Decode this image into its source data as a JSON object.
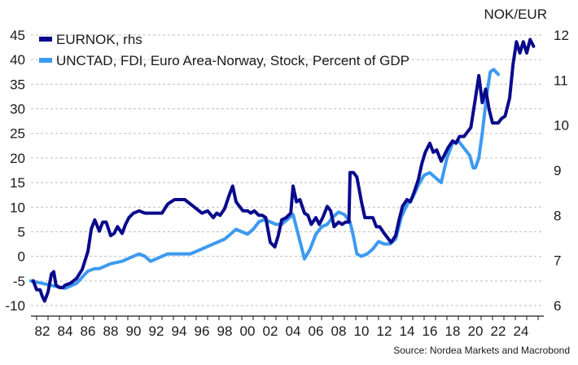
{
  "chart_data": {
    "type": "line",
    "title": "",
    "right_axis_unit": "NOK/EUR",
    "source": "Source: Nordea Markets and Macrobond",
    "ylim_left": [
      -10,
      45
    ],
    "ylim_right": [
      6,
      12
    ],
    "yticks_left": [
      "-10",
      "-5",
      "0",
      "5",
      "10",
      "15",
      "20",
      "25",
      "30",
      "35",
      "40",
      "45"
    ],
    "yticks_right": [
      "6",
      "7",
      "8",
      "9",
      "10",
      "11",
      "12"
    ],
    "xlim": [
      1981,
      2026
    ],
    "xticks": [
      "82",
      "84",
      "86",
      "88",
      "90",
      "92",
      "94",
      "96",
      "98",
      "00",
      "02",
      "04",
      "06",
      "08",
      "10",
      "12",
      "14",
      "16",
      "18",
      "20",
      "22",
      "24"
    ],
    "grid": true,
    "legend_position": "top-left",
    "series": [
      {
        "name": "EURNOK, rhs",
        "axis": "right",
        "color": "#0a0a8c",
        "x": [
          1981.2,
          1981.5,
          1981.8,
          1982.0,
          1982.2,
          1982.5,
          1982.8,
          1983.0,
          1983.2,
          1983.5,
          1983.8,
          1984.0,
          1984.5,
          1985.0,
          1985.5,
          1986.0,
          1986.3,
          1986.6,
          1987.0,
          1987.3,
          1987.6,
          1988.0,
          1988.3,
          1988.6,
          1989.0,
          1989.3,
          1989.6,
          1990.0,
          1990.5,
          1991.0,
          1991.5,
          1992.0,
          1992.5,
          1993.0,
          1993.3,
          1993.6,
          1994.0,
          1994.5,
          1995.0,
          1995.5,
          1996.0,
          1996.5,
          1997.0,
          1997.3,
          1997.6,
          1998.0,
          1998.4,
          1998.7,
          1999.0,
          1999.3,
          1999.6,
          2000.0,
          2000.3,
          2000.6,
          2001.0,
          2001.3,
          2001.6,
          2002.0,
          2002.4,
          2002.7,
          2003.0,
          2003.4,
          2003.8,
          2004.0,
          2004.3,
          2004.6,
          2005.0,
          2005.3,
          2005.6,
          2006.0,
          2006.3,
          2006.6,
          2007.0,
          2007.3,
          2007.6,
          2008.0,
          2008.3,
          2008.6,
          2008.9,
          2009.0,
          2009.3,
          2009.6,
          2010.0,
          2010.3,
          2010.6,
          2011.0,
          2011.3,
          2011.6,
          2012.0,
          2012.3,
          2012.6,
          2013.0,
          2013.3,
          2013.6,
          2014.0,
          2014.3,
          2014.6,
          2015.0,
          2015.3,
          2015.6,
          2016.0,
          2016.3,
          2016.6,
          2017.0,
          2017.3,
          2017.6,
          2018.0,
          2018.3,
          2018.6,
          2019.0,
          2019.3,
          2019.6,
          2020.0,
          2020.3,
          2020.6,
          2020.9,
          2021.2,
          2021.5,
          2022.0,
          2022.3,
          2022.6,
          2023.0,
          2023.3,
          2023.6,
          2023.9,
          2024.2,
          2024.5,
          2024.8,
          2025.1
        ],
        "values": [
          6.55,
          6.35,
          6.35,
          6.2,
          6.1,
          6.3,
          6.7,
          6.75,
          6.45,
          6.4,
          6.4,
          6.45,
          6.5,
          6.6,
          6.8,
          7.2,
          7.7,
          7.9,
          7.65,
          7.85,
          7.85,
          7.55,
          7.6,
          7.75,
          7.6,
          7.8,
          7.95,
          8.05,
          8.1,
          8.05,
          8.05,
          8.05,
          8.05,
          8.25,
          8.3,
          8.35,
          8.35,
          8.35,
          8.25,
          8.15,
          8.05,
          8.1,
          7.95,
          8.05,
          8.0,
          8.15,
          8.45,
          8.65,
          8.3,
          8.2,
          8.1,
          8.1,
          8.05,
          8.1,
          8.0,
          8.0,
          7.95,
          7.4,
          7.3,
          7.55,
          7.9,
          7.95,
          8.05,
          8.65,
          8.3,
          8.35,
          8.05,
          8.0,
          7.8,
          7.95,
          7.8,
          7.95,
          8.2,
          8.1,
          7.75,
          7.85,
          7.8,
          7.85,
          7.85,
          8.95,
          8.95,
          8.85,
          8.3,
          7.95,
          7.95,
          7.95,
          7.75,
          7.75,
          7.6,
          7.5,
          7.4,
          7.55,
          7.9,
          8.2,
          8.35,
          8.3,
          8.5,
          8.8,
          9.15,
          9.4,
          9.6,
          9.4,
          9.45,
          9.2,
          9.35,
          9.5,
          9.65,
          9.6,
          9.75,
          9.75,
          9.85,
          9.95,
          10.6,
          11.1,
          10.5,
          10.8,
          10.35,
          10.05,
          10.05,
          10.15,
          10.2,
          10.6,
          11.35,
          11.85,
          11.6,
          11.85,
          11.6,
          11.9,
          11.75
        ]
      },
      {
        "name": "UNCTAD, FDI, Euro Area-Norway, Stock, Percent of GDP",
        "axis": "left",
        "color": "#3d9af0",
        "x": [
          1981.0,
          1982.0,
          1983.0,
          1984.0,
          1985.0,
          1986.0,
          1986.6,
          1987.0,
          1988.0,
          1989.0,
          1990.0,
          1990.5,
          1991.0,
          1991.5,
          1992.0,
          1992.5,
          1993.0,
          1994.0,
          1995.0,
          1996.0,
          1997.0,
          1998.0,
          1998.5,
          1999.0,
          1999.5,
          2000.0,
          2000.5,
          2001.0,
          2001.5,
          2002.0,
          2002.5,
          2003.0,
          2003.5,
          2004.0,
          2004.5,
          2005.0,
          2005.5,
          2006.0,
          2006.5,
          2007.0,
          2007.5,
          2008.0,
          2008.5,
          2009.0,
          2009.3,
          2009.6,
          2010.0,
          2010.5,
          2011.0,
          2011.5,
          2012.0,
          2012.5,
          2013.0,
          2013.5,
          2014.0,
          2014.5,
          2015.0,
          2015.5,
          2016.0,
          2016.5,
          2017.0,
          2017.5,
          2018.0,
          2018.5,
          2019.0,
          2019.5,
          2019.8,
          2020.0,
          2020.3,
          2020.6,
          2021.0,
          2021.3,
          2021.6,
          2022.0
        ],
        "values": [
          -5.0,
          -5.5,
          -6.0,
          -6.5,
          -5.5,
          -3.0,
          -2.5,
          -2.5,
          -1.5,
          -1.0,
          0.0,
          0.5,
          0.0,
          -1.0,
          -0.5,
          0.0,
          0.5,
          0.5,
          0.5,
          1.5,
          2.5,
          3.5,
          4.5,
          5.5,
          5.0,
          4.5,
          5.5,
          7.0,
          7.5,
          7.0,
          6.5,
          6.5,
          7.5,
          8.5,
          4.0,
          -0.5,
          1.5,
          4.5,
          6.0,
          6.5,
          8.0,
          9.0,
          8.5,
          7.0,
          4.0,
          0.5,
          0.0,
          0.5,
          1.5,
          3.0,
          2.5,
          2.5,
          3.5,
          8.0,
          10.5,
          12.0,
          14.5,
          16.5,
          17.0,
          16.0,
          15.0,
          20.0,
          23.0,
          23.5,
          22.0,
          20.5,
          18.0,
          18.0,
          20.0,
          25.0,
          33.0,
          37.5,
          38.0,
          37.0
        ]
      }
    ]
  }
}
